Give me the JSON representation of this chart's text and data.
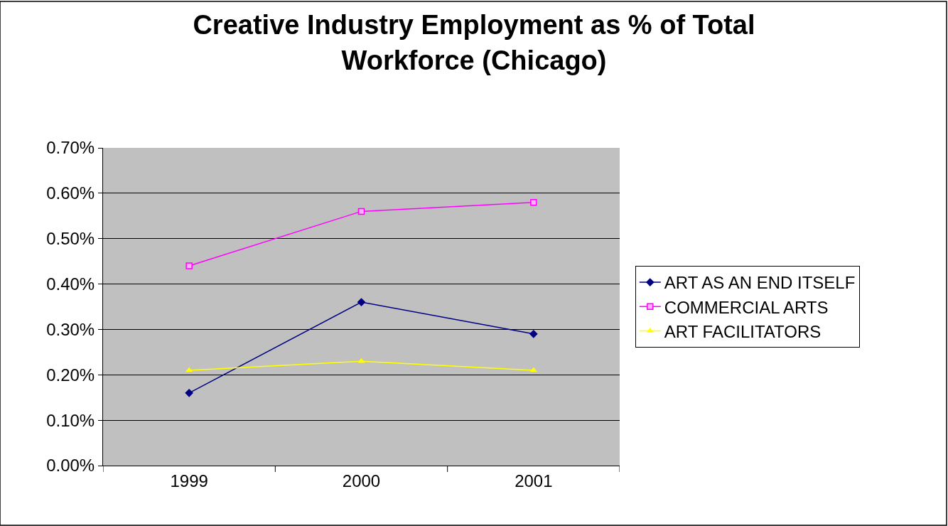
{
  "chart_data": {
    "type": "line",
    "title": "Creative Industry Employment as % of Total\nWorkforce (Chicago)",
    "categories": [
      "1999",
      "2000",
      "2001"
    ],
    "series": [
      {
        "name": "ART AS AN END ITSELF",
        "color": "#000080",
        "marker": "diamond",
        "values": [
          0.16,
          0.36,
          0.29
        ]
      },
      {
        "name": "COMMERCIAL ARTS",
        "color": "#ff00ff",
        "marker": "square",
        "values": [
          0.44,
          0.56,
          0.58
        ]
      },
      {
        "name": "ART FACILITATORS",
        "color": "#ffff00",
        "marker": "triangle",
        "values": [
          0.21,
          0.23,
          0.21
        ]
      }
    ],
    "ylim": [
      0,
      0.7
    ],
    "yticks": [
      {
        "value": 0,
        "label": "0.00%"
      },
      {
        "value": 0.1,
        "label": "0.10%"
      },
      {
        "value": 0.2,
        "label": "0.20%"
      },
      {
        "value": 0.3,
        "label": "0.30%"
      },
      {
        "value": 0.4,
        "label": "0.40%"
      },
      {
        "value": 0.5,
        "label": "0.50%"
      },
      {
        "value": 0.6,
        "label": "0.60%"
      },
      {
        "value": 0.7,
        "label": "0.70%"
      }
    ],
    "grid": "y",
    "legend": "right",
    "line_style": "solid"
  }
}
